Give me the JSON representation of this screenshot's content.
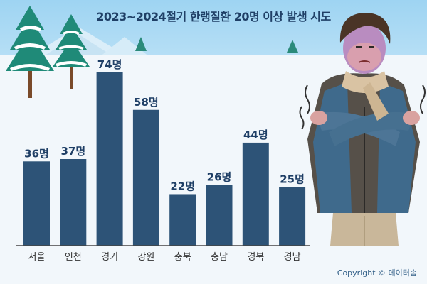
{
  "title": "2023~2024절기 한랭질환 20명 이상 발생 시도",
  "copyright": "Copyright © 데이터솜",
  "colors": {
    "bar": "#2d5377",
    "label": "#1f3f66",
    "axis": "#444444"
  },
  "chart_data": {
    "type": "bar",
    "title": "2023~2024절기 한랭질환 20명 이상 발생 시도",
    "categories": [
      "서울",
      "인천",
      "경기",
      "강원",
      "충북",
      "충남",
      "경북",
      "경남"
    ],
    "values": [
      36,
      37,
      74,
      58,
      22,
      26,
      44,
      25
    ],
    "data_labels": [
      "36명",
      "37명",
      "74명",
      "58명",
      "22명",
      "26명",
      "44명",
      "25명"
    ],
    "unit": "명",
    "ylim": [
      0,
      80
    ],
    "grid": false,
    "legend": "none"
  }
}
